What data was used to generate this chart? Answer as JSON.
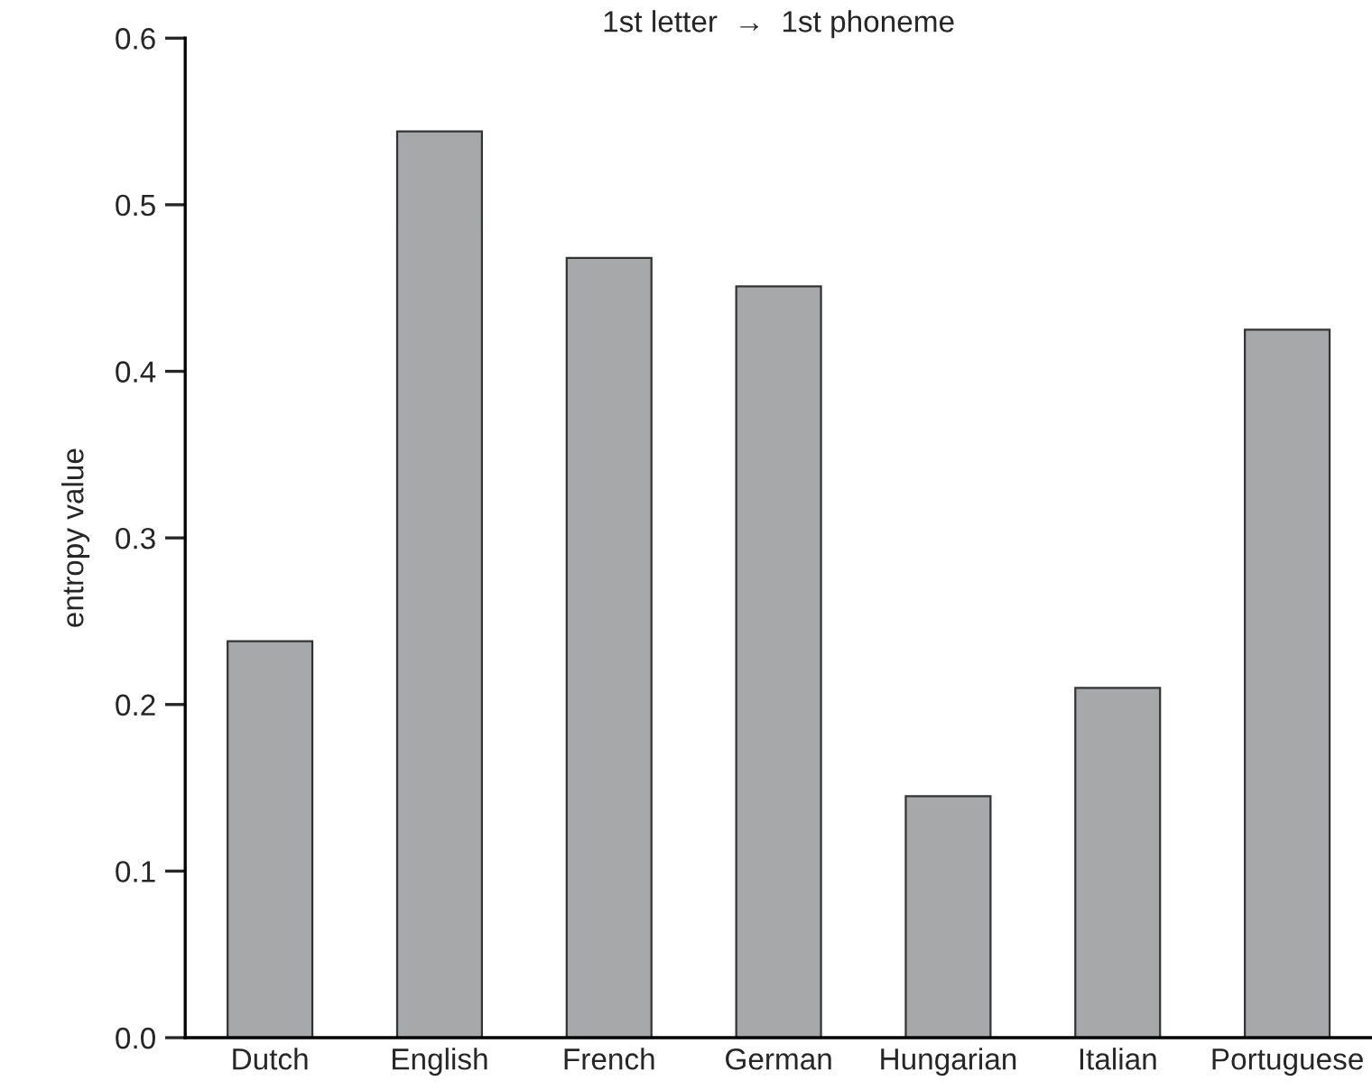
{
  "chart_data": {
    "type": "bar",
    "title": "1st letter  →  1st phoneme",
    "ylabel": "entropy value",
    "categories": [
      "Dutch",
      "English",
      "French",
      "German",
      "Hungarian",
      "Italian",
      "Portuguese"
    ],
    "values": [
      0.238,
      0.544,
      0.468,
      0.451,
      0.145,
      0.21,
      0.425
    ],
    "color": "#a7a8aa",
    "ylim": [
      0,
      0.6
    ],
    "yticks": [
      {
        "value": 0,
        "label": "0.0"
      },
      0.1,
      0.2,
      0.3,
      0.4,
      0.5,
      0.6
    ],
    "grid": false,
    "legend": false
  }
}
